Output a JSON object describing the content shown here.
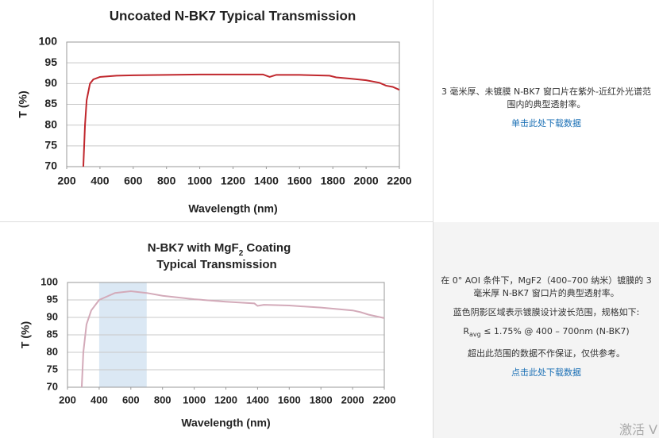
{
  "chart_data": [
    {
      "type": "line",
      "title": "Uncoated N-BK7 Typical Transmission",
      "xlabel": "Wavelength (nm)",
      "ylabel": "T (%)",
      "xlim": [
        200,
        2200
      ],
      "ylim": [
        70,
        100
      ],
      "xticks": [
        200,
        400,
        600,
        800,
        1000,
        1200,
        1400,
        1600,
        1800,
        2000,
        2200
      ],
      "yticks": [
        70,
        75,
        80,
        85,
        90,
        95,
        100
      ],
      "grid": true,
      "color": "#c0272d",
      "x": [
        300,
        310,
        320,
        340,
        360,
        400,
        500,
        600,
        800,
        1000,
        1200,
        1380,
        1420,
        1460,
        1600,
        1780,
        1820,
        1900,
        2000,
        2080,
        2120,
        2160,
        2200
      ],
      "values": [
        70,
        80,
        86,
        90,
        91,
        91.6,
        91.9,
        92.0,
        92.1,
        92.2,
        92.2,
        92.2,
        91.6,
        92.1,
        92.1,
        91.9,
        91.5,
        91.2,
        90.8,
        90.2,
        89.5,
        89.2,
        88.5
      ]
    },
    {
      "type": "line",
      "title": {
        "main": "N-BK7 with MgF",
        "subscript": "2",
        "rest": " Coating",
        "line2": "Typical Transmission"
      },
      "xlabel": "Wavelength (nm)",
      "ylabel": "T (%)",
      "xlim": [
        200,
        2200
      ],
      "ylim": [
        70,
        100
      ],
      "xticks": [
        200,
        400,
        600,
        800,
        1000,
        1200,
        1400,
        1600,
        1800,
        2000,
        2200
      ],
      "yticks": [
        70,
        75,
        80,
        85,
        90,
        95,
        100
      ],
      "grid": true,
      "color": "#d3aab9",
      "shaded_region": [
        400,
        700
      ],
      "shade_color": "#dbe8f4",
      "x": [
        290,
        300,
        320,
        350,
        400,
        500,
        600,
        700,
        800,
        1000,
        1200,
        1380,
        1400,
        1440,
        1600,
        1800,
        2000,
        2050,
        2100,
        2200
      ],
      "values": [
        70,
        80,
        88,
        92,
        95,
        97,
        97.5,
        97,
        96.2,
        95.2,
        94.5,
        94,
        93.3,
        93.6,
        93.4,
        92.8,
        92,
        91.5,
        90.8,
        89.8
      ]
    }
  ],
  "descriptions": [
    {
      "text": "3 毫米厚、未镀膜 N-BK7 窗口片在紫外-近红外光谱范围内的典型透射率。",
      "link": "单击此处下载数据"
    },
    {
      "text": "在 0° AOI 条件下，MgF2（400–700 纳米）镀膜的 3 毫米厚 N-BK7 窗口片的典型透射率。",
      "note": "蓝色阴影区域表示镀膜设计波长范围，规格如下:",
      "spec": {
        "symbol": "R",
        "subscript": "avg",
        "rest": " ≤ 1.75% @ 400 – 700nm (N-BK7)"
      },
      "disclaimer": "超出此范围的数据不作保证，仅供参考。",
      "link": "点击此处下载数据"
    }
  ],
  "watermark": "激活 V"
}
